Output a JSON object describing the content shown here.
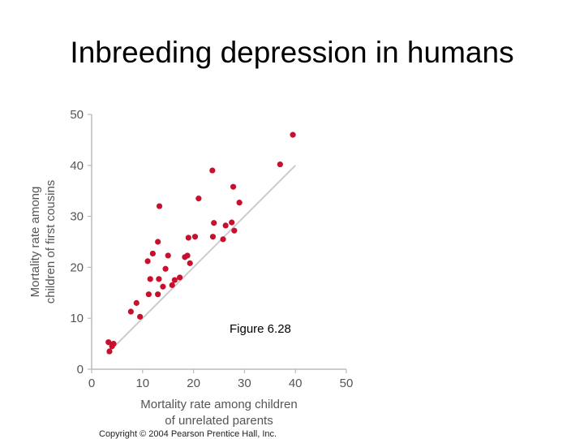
{
  "slide": {
    "title": "Inbreeding depression in humans",
    "figure_label": "Figure 6.28",
    "copyright": "Copyright © 2004 Pearson Prentice Hall, Inc."
  },
  "colors": {
    "point": "#c8102e",
    "reference_line": "#cccccc",
    "axis": "#bbbbbb",
    "text": "#555555"
  },
  "chart_data": {
    "type": "scatter",
    "title": "",
    "xlabel_lines": [
      "Mortality rate among children",
      "of unrelated parents"
    ],
    "ylabel_lines": [
      "Mortality rate among",
      "children of first cousins"
    ],
    "xlim": [
      0,
      50
    ],
    "ylim": [
      0,
      50
    ],
    "xticks": [
      0,
      10,
      20,
      30,
      40,
      50
    ],
    "yticks": [
      0,
      10,
      20,
      30,
      40,
      50
    ],
    "grid": false,
    "reference_line": {
      "x": [
        3,
        40
      ],
      "y": [
        3,
        40
      ]
    },
    "points": [
      {
        "x": 3.3,
        "y": 5.3
      },
      {
        "x": 3.5,
        "y": 3.5
      },
      {
        "x": 4.0,
        "y": 4.5
      },
      {
        "x": 4.3,
        "y": 5.0
      },
      {
        "x": 7.7,
        "y": 11.3
      },
      {
        "x": 8.8,
        "y": 13.0
      },
      {
        "x": 9.5,
        "y": 10.3
      },
      {
        "x": 11.0,
        "y": 21.2
      },
      {
        "x": 11.2,
        "y": 14.7
      },
      {
        "x": 11.5,
        "y": 17.7
      },
      {
        "x": 12.0,
        "y": 22.7
      },
      {
        "x": 13.0,
        "y": 25.0
      },
      {
        "x": 13.0,
        "y": 14.7
      },
      {
        "x": 13.2,
        "y": 17.7
      },
      {
        "x": 13.3,
        "y": 32.0
      },
      {
        "x": 14.0,
        "y": 16.2
      },
      {
        "x": 14.5,
        "y": 19.7
      },
      {
        "x": 15.0,
        "y": 22.3
      },
      {
        "x": 15.8,
        "y": 16.5
      },
      {
        "x": 16.3,
        "y": 17.5
      },
      {
        "x": 17.3,
        "y": 18.0
      },
      {
        "x": 18.3,
        "y": 22.0
      },
      {
        "x": 18.8,
        "y": 22.3
      },
      {
        "x": 19.0,
        "y": 25.8
      },
      {
        "x": 19.3,
        "y": 20.8
      },
      {
        "x": 20.3,
        "y": 26.0
      },
      {
        "x": 21.0,
        "y": 33.5
      },
      {
        "x": 23.7,
        "y": 39.0
      },
      {
        "x": 23.8,
        "y": 26.0
      },
      {
        "x": 24.0,
        "y": 28.7
      },
      {
        "x": 25.8,
        "y": 25.5
      },
      {
        "x": 26.3,
        "y": 28.2
      },
      {
        "x": 27.5,
        "y": 28.8
      },
      {
        "x": 27.8,
        "y": 35.8
      },
      {
        "x": 28.0,
        "y": 27.2
      },
      {
        "x": 29.0,
        "y": 32.7
      },
      {
        "x": 37.0,
        "y": 40.2
      },
      {
        "x": 39.5,
        "y": 46.0
      }
    ]
  }
}
